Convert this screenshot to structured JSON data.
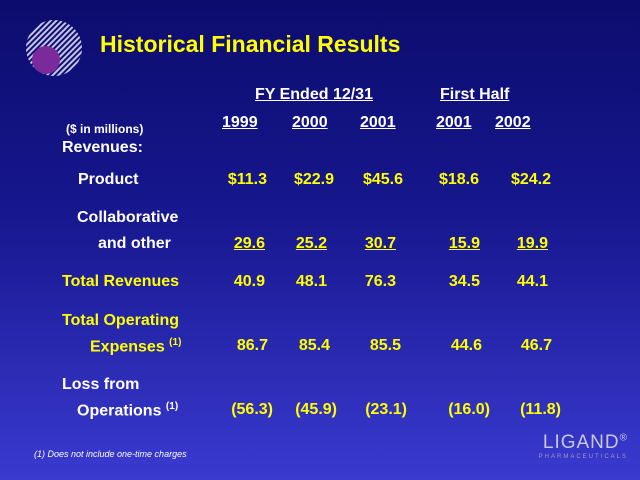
{
  "title": "Historical Financial Results",
  "headers": {
    "fy_group": "FY Ended 12/31",
    "half_group": "First Half",
    "units": "($ in millions)",
    "years": [
      "1999",
      "2000",
      "2001",
      "2001",
      "2002"
    ]
  },
  "rows": {
    "revenues": "Revenues:",
    "product": {
      "label": "Product",
      "values": [
        "$11.3",
        "$22.9",
        "$45.6",
        "$18.6",
        "$24.2"
      ]
    },
    "collab": {
      "label_line1": "Collaborative",
      "label_line2": "and other",
      "values": [
        "29.6",
        "25.2",
        "30.7",
        "15.9",
        "19.9"
      ]
    },
    "total_rev": {
      "label": "Total Revenues",
      "values": [
        "40.9",
        "48.1",
        "76.3",
        "34.5",
        "44.1"
      ]
    },
    "opex": {
      "label_line1": "Total Operating",
      "label_line2": "Expenses",
      "note": "(1)",
      "values": [
        "86.7",
        "85.4",
        "85.5",
        "44.6",
        "46.7"
      ]
    },
    "loss": {
      "label_line1": "Loss from",
      "label_line2": "Operations",
      "note": "(1)",
      "values": [
        "(56.3)",
        "(45.9)",
        "(23.1)",
        "(16.0)",
        "(11.8)"
      ]
    }
  },
  "footnote": "(1) Does not include one-time charges",
  "logo": {
    "name": "LIGAND",
    "mark": "®",
    "sub": "PHARMACEUTICALS"
  },
  "colors": {
    "background_top": "#0c0c6e",
    "background_bottom": "#3a3ad0",
    "accent": "#ffff00",
    "text": "#ffffff"
  }
}
